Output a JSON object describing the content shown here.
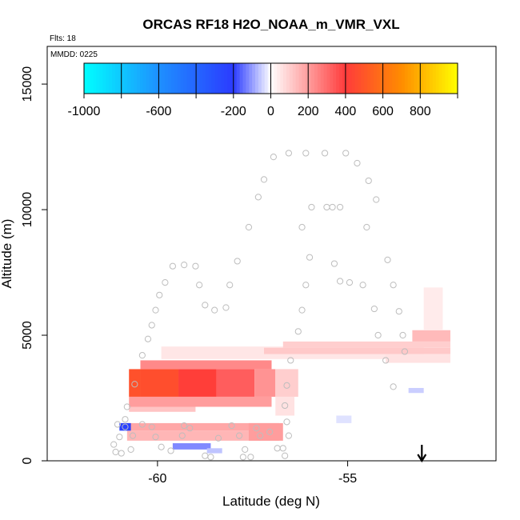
{
  "chart_data": {
    "type": "heatmap",
    "title": "ORCAS RF18 H2O_NOAA_m_VMR_VXL",
    "flights_label": "Flts: 18",
    "date_label": "MMDD: 0225",
    "xlabel": "Latitude (deg N)",
    "ylabel": "Altitude (m)",
    "xlim": [
      -62.9,
      -51.1
    ],
    "ylim": [
      0,
      16500
    ],
    "xticks": [
      -60,
      -55
    ],
    "yticks": [
      0,
      5000,
      10000,
      15000
    ],
    "colorbar": {
      "range": [
        -1000,
        1000
      ],
      "tick_values": [
        -1000,
        -600,
        -200,
        0,
        200,
        400,
        600,
        800
      ],
      "tick_labels": [
        "-1000",
        "-600",
        "-200",
        "0",
        "200",
        "400",
        "600",
        "800"
      ],
      "colors": [
        "#00ffff",
        "#1e90ff",
        "#2b3bff",
        "#ffffff",
        "#ff3b3b",
        "#ff8c00",
        "#ffff00"
      ],
      "color_positions": [
        0,
        0.2,
        0.4,
        0.5,
        0.7,
        0.85,
        1.0
      ]
    },
    "cells": [
      {
        "lat0": -60.75,
        "lat1": -60.45,
        "alt0": 2550,
        "alt1": 3650,
        "value": 480
      },
      {
        "lat0": -60.45,
        "lat1": -59.45,
        "alt0": 2550,
        "alt1": 3650,
        "value": 470
      },
      {
        "lat0": -59.45,
        "lat1": -58.45,
        "alt0": 2550,
        "alt1": 3650,
        "value": 410
      },
      {
        "lat0": -58.45,
        "lat1": -57.45,
        "alt0": 2550,
        "alt1": 3650,
        "value": 330
      },
      {
        "lat0": -57.45,
        "lat1": -56.9,
        "alt0": 2550,
        "alt1": 3650,
        "value": 220
      },
      {
        "lat0": -56.9,
        "lat1": -56.3,
        "alt0": 2550,
        "alt1": 3650,
        "value": 100
      },
      {
        "lat0": -60.45,
        "lat1": -57.0,
        "alt0": 3650,
        "alt1": 4000,
        "value": 240
      },
      {
        "lat0": -60.75,
        "lat1": -57.0,
        "alt0": 2150,
        "alt1": 2550,
        "value": 200
      },
      {
        "lat0": -60.75,
        "lat1": -59.0,
        "alt0": 1950,
        "alt1": 2150,
        "value": 120
      },
      {
        "lat0": -56.9,
        "lat1": -56.4,
        "alt0": 1800,
        "alt1": 2550,
        "value": 60
      },
      {
        "lat0": -59.9,
        "lat1": -53.0,
        "alt0": 4050,
        "alt1": 4550,
        "value": 50
      },
      {
        "lat0": -57.2,
        "lat1": -52.3,
        "alt0": 4250,
        "alt1": 4500,
        "value": 110
      },
      {
        "lat0": -56.7,
        "lat1": -52.3,
        "alt0": 4500,
        "alt1": 4750,
        "value": 100
      },
      {
        "lat0": -53.3,
        "lat1": -52.3,
        "alt0": 4750,
        "alt1": 5200,
        "value": 140
      },
      {
        "lat0": -53.0,
        "lat1": -52.5,
        "alt0": 5200,
        "alt1": 6900,
        "value": 40
      },
      {
        "lat0": -54.0,
        "lat1": -52.3,
        "alt0": 3900,
        "alt1": 4250,
        "value": 60
      },
      {
        "lat0": -60.8,
        "lat1": -56.8,
        "alt0": 1200,
        "alt1": 1500,
        "value": 180
      },
      {
        "lat0": -60.8,
        "lat1": -56.8,
        "alt0": 800,
        "alt1": 1200,
        "value": 150
      },
      {
        "lat0": -57.6,
        "lat1": -56.7,
        "alt0": 800,
        "alt1": 1500,
        "value": 200
      },
      {
        "lat0": -61.0,
        "lat1": -60.7,
        "alt0": 1200,
        "alt1": 1500,
        "value": -230
      },
      {
        "lat0": -59.6,
        "lat1": -58.6,
        "alt0": 450,
        "alt1": 700,
        "value": -120
      },
      {
        "lat0": -58.7,
        "lat1": -58.3,
        "alt0": 300,
        "alt1": 500,
        "value": -60
      },
      {
        "lat0": -55.3,
        "lat1": -54.9,
        "alt0": 1500,
        "alt1": 1800,
        "value": -30
      },
      {
        "lat0": -53.4,
        "lat1": -53.0,
        "alt0": 2700,
        "alt1": 2900,
        "value": -50
      }
    ],
    "flight_track": [
      {
        "lat": -61.1,
        "alt": 350
      },
      {
        "lat": -60.95,
        "alt": 300
      },
      {
        "lat": -61.0,
        "alt": 950
      },
      {
        "lat": -60.85,
        "alt": 1350
      },
      {
        "lat": -60.85,
        "alt": 1650
      },
      {
        "lat": -60.8,
        "alt": 2150
      },
      {
        "lat": -60.6,
        "alt": 3050
      },
      {
        "lat": -60.4,
        "alt": 4200
      },
      {
        "lat": -60.25,
        "alt": 4850
      },
      {
        "lat": -60.15,
        "alt": 5400
      },
      {
        "lat": -60.05,
        "alt": 6000
      },
      {
        "lat": -59.95,
        "alt": 6600
      },
      {
        "lat": -59.8,
        "alt": 7100
      },
      {
        "lat": -59.6,
        "alt": 7750
      },
      {
        "lat": -59.3,
        "alt": 7800
      },
      {
        "lat": -59.0,
        "alt": 7750
      },
      {
        "lat": -58.9,
        "alt": 7000
      },
      {
        "lat": -58.75,
        "alt": 6200
      },
      {
        "lat": -58.5,
        "alt": 6000
      },
      {
        "lat": -58.2,
        "alt": 6100
      },
      {
        "lat": -58.1,
        "alt": 7000
      },
      {
        "lat": -57.9,
        "alt": 7950
      },
      {
        "lat": -57.6,
        "alt": 9300
      },
      {
        "lat": -57.35,
        "alt": 10500
      },
      {
        "lat": -57.2,
        "alt": 11200
      },
      {
        "lat": -56.95,
        "alt": 12100
      },
      {
        "lat": -56.55,
        "alt": 12250
      },
      {
        "lat": -56.1,
        "alt": 12250
      },
      {
        "lat": -55.6,
        "alt": 12250
      },
      {
        "lat": -55.05,
        "alt": 12250
      },
      {
        "lat": -54.75,
        "alt": 11850
      },
      {
        "lat": -54.45,
        "alt": 11150
      },
      {
        "lat": -54.25,
        "alt": 10400
      },
      {
        "lat": -54.5,
        "alt": 9300
      },
      {
        "lat": -55.2,
        "alt": 10100
      },
      {
        "lat": -55.4,
        "alt": 10100
      },
      {
        "lat": -55.55,
        "alt": 10100
      },
      {
        "lat": -55.95,
        "alt": 10100
      },
      {
        "lat": -56.2,
        "alt": 9300
      },
      {
        "lat": -56.0,
        "alt": 8100
      },
      {
        "lat": -55.35,
        "alt": 7850
      },
      {
        "lat": -55.2,
        "alt": 7150
      },
      {
        "lat": -54.95,
        "alt": 7100
      },
      {
        "lat": -54.6,
        "alt": 7000
      },
      {
        "lat": -54.3,
        "alt": 6050
      },
      {
        "lat": -54.2,
        "alt": 5000
      },
      {
        "lat": -54.0,
        "alt": 4000
      },
      {
        "lat": -53.8,
        "alt": 2950
      },
      {
        "lat": -53.5,
        "alt": 4350
      },
      {
        "lat": -53.55,
        "alt": 5000
      },
      {
        "lat": -53.65,
        "alt": 5950
      },
      {
        "lat": -53.8,
        "alt": 7000
      },
      {
        "lat": -53.95,
        "alt": 8000
      },
      {
        "lat": -56.1,
        "alt": 7000
      },
      {
        "lat": -56.2,
        "alt": 6000
      },
      {
        "lat": -56.3,
        "alt": 5150
      },
      {
        "lat": -56.5,
        "alt": 4000
      },
      {
        "lat": -56.6,
        "alt": 3000
      },
      {
        "lat": -56.65,
        "alt": 2200
      },
      {
        "lat": -56.6,
        "alt": 1550
      },
      {
        "lat": -56.55,
        "alt": 1000
      },
      {
        "lat": -56.7,
        "alt": 500
      },
      {
        "lat": -56.65,
        "alt": 200
      },
      {
        "lat": -56.85,
        "alt": 500
      },
      {
        "lat": -57.05,
        "alt": 1150
      },
      {
        "lat": -57.3,
        "alt": 1000
      },
      {
        "lat": -57.4,
        "alt": 1300
      },
      {
        "lat": -57.55,
        "alt": 150
      },
      {
        "lat": -57.75,
        "alt": 150
      },
      {
        "lat": -57.7,
        "alt": 450
      },
      {
        "lat": -57.85,
        "alt": 1000
      },
      {
        "lat": -58.05,
        "alt": 1400
      },
      {
        "lat": -58.4,
        "alt": 900
      },
      {
        "lat": -58.6,
        "alt": 150
      },
      {
        "lat": -58.75,
        "alt": 200
      },
      {
        "lat": -59.15,
        "alt": 1300
      },
      {
        "lat": -59.3,
        "alt": 1400
      },
      {
        "lat": -59.35,
        "alt": 1000
      },
      {
        "lat": -59.65,
        "alt": 400
      },
      {
        "lat": -59.9,
        "alt": 550
      },
      {
        "lat": -60.05,
        "alt": 950
      },
      {
        "lat": -60.15,
        "alt": 1350
      },
      {
        "lat": -60.4,
        "alt": 1450
      },
      {
        "lat": -60.65,
        "alt": 1000
      },
      {
        "lat": -60.7,
        "alt": 450
      },
      {
        "lat": -61.05,
        "alt": 1450
      },
      {
        "lat": -61.15,
        "alt": 650
      }
    ],
    "marker": {
      "lat": -53.05,
      "label": "arrow-down"
    },
    "grid": false
  }
}
